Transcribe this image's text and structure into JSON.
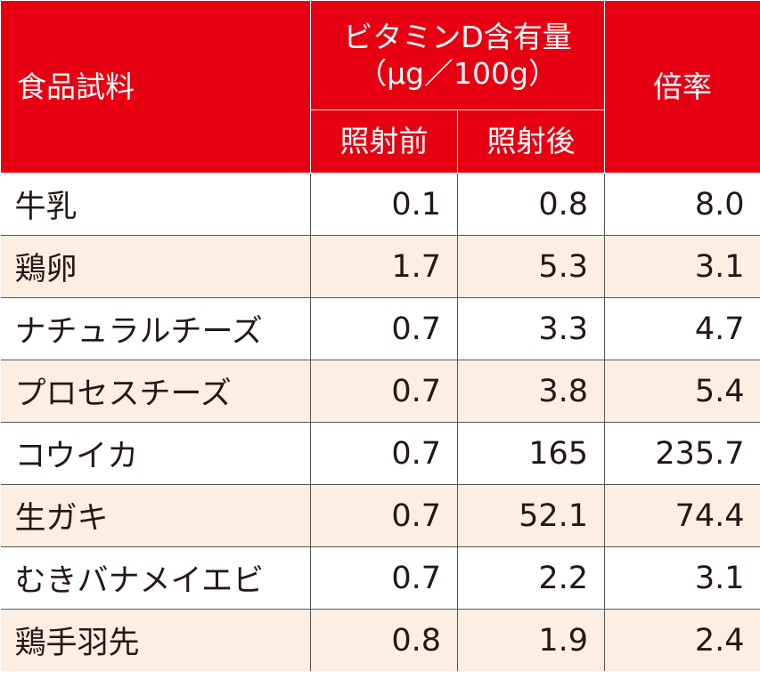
{
  "header": {
    "food_sample": "食品試料",
    "vitamin_d_line1": "ビタミンD含有量",
    "vitamin_d_line2": "（µg／100g）",
    "before": "照射前",
    "after": "照射後",
    "ratio": "倍率"
  },
  "rows": [
    {
      "name": "牛乳",
      "before": "0.1",
      "after": "0.8",
      "ratio": "8.0"
    },
    {
      "name": "鶏卵",
      "before": "1.7",
      "after": "5.3",
      "ratio": "3.1"
    },
    {
      "name": "ナチュラルチーズ",
      "before": "0.7",
      "after": "3.3",
      "ratio": "4.7"
    },
    {
      "name": "プロセスチーズ",
      "before": "0.7",
      "after": "3.8",
      "ratio": "5.4"
    },
    {
      "name": "コウイカ",
      "before": "0.7",
      "after": "165",
      "ratio": "235.7"
    },
    {
      "name": "生ガキ",
      "before": "0.7",
      "after": "52.1",
      "ratio": "74.4"
    },
    {
      "name": "むきバナメイエビ",
      "before": "0.7",
      "after": "2.2",
      "ratio": "3.1"
    },
    {
      "name": "鶏手羽先",
      "before": "0.8",
      "after": "1.9",
      "ratio": "2.4"
    }
  ],
  "colors": {
    "header_bg": "#e60012",
    "header_text": "#ffffff",
    "stripe_row": "#fdeee4",
    "border": "#555555"
  }
}
